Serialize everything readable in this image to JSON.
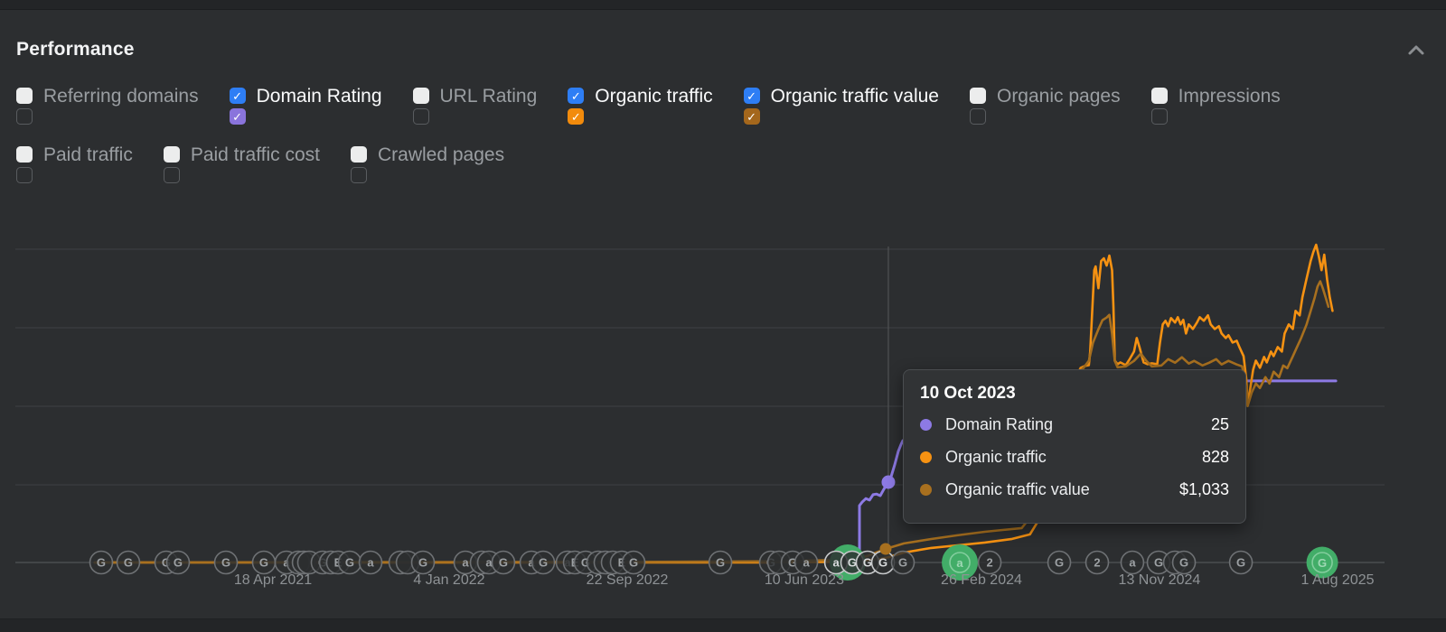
{
  "panel": {
    "title": "Performance",
    "collapse_icon": "chevron-up-icon"
  },
  "metrics_row1": [
    {
      "label": "Referring domains",
      "checked": false,
      "color": null
    },
    {
      "label": "Domain Rating",
      "checked": true,
      "color": "#8a74dc"
    },
    {
      "label": "URL Rating",
      "checked": false,
      "color": null
    },
    {
      "label": "Organic traffic",
      "checked": true,
      "color": "#f28b0c"
    },
    {
      "label": "Organic traffic value",
      "checked": true,
      "color": "#a4671c"
    },
    {
      "label": "Organic pages",
      "checked": false,
      "color": null
    },
    {
      "label": "Impressions",
      "checked": false,
      "color": null
    }
  ],
  "metrics_row2": [
    {
      "label": "Paid traffic",
      "checked": false,
      "color": null
    },
    {
      "label": "Paid traffic cost",
      "checked": false,
      "color": null
    },
    {
      "label": "Crawled pages",
      "checked": false,
      "color": null
    }
  ],
  "checkbox_checked_color": "#2e7ef5",
  "tooltip": {
    "date": "10 Oct 2023",
    "rows": [
      {
        "label": "Domain Rating",
        "value": "25",
        "color": "#8d7ae4"
      },
      {
        "label": "Organic traffic",
        "value": "828",
        "color": "#f69212"
      },
      {
        "label": "Organic traffic value",
        "value": "$1,033",
        "color": "#a8701f"
      }
    ]
  },
  "colors": {
    "panel_bg": "#2c2e30",
    "gridline": "#3e4043",
    "crosshair": "#515употре",
    "axis_text": "#8e9295",
    "domain_rating_line": "#8d7ae4",
    "organic_traffic_line": "#f69212",
    "organic_traffic_value_line": "#a8701f",
    "event_green": "#42ad68",
    "timeline_line": "#4b4e51"
  },
  "chart_data": {
    "type": "line",
    "title": "",
    "xlabel": "",
    "ylabel": "",
    "grid": true,
    "legend_position": "none",
    "x_axis_labels": [
      {
        "label": "18 Apr 2021",
        "t": 0.1881
      },
      {
        "label": "4 Jan 2022",
        "t": 0.3168
      },
      {
        "label": "22 Sep 2022",
        "t": 0.4469
      },
      {
        "label": "10 Jun 2023",
        "t": 0.5762
      },
      {
        "label": "26 Feb 2024",
        "t": 0.7056
      },
      {
        "label": "13 Nov 2024",
        "t": 0.8356
      },
      {
        "label": "1 Aug 2025",
        "t": 0.9657
      }
    ],
    "crosshair_t": 0.6376,
    "hover_date": "10 Oct 2023",
    "series": [
      {
        "name": "Domain Rating",
        "color": "#8d7ae4",
        "width": 3,
        "y_max": 100,
        "points": [
          [
            0.6165,
            0
          ],
          [
            0.6165,
            17.7
          ],
          [
            0.6185,
            18.8
          ],
          [
            0.6212,
            19.9
          ],
          [
            0.6238,
            19.4
          ],
          [
            0.6264,
            21.1
          ],
          [
            0.629,
            21.3
          ],
          [
            0.6317,
            20.8
          ],
          [
            0.6343,
            22.8
          ],
          [
            0.6363,
            24.2
          ],
          [
            0.6376,
            25
          ],
          [
            0.6396,
            26.7
          ],
          [
            0.6422,
            30.3
          ],
          [
            0.6449,
            34.6
          ],
          [
            0.6469,
            36.8
          ],
          [
            0.6482,
            37.9
          ],
          [
            0.682,
            43
          ],
          [
            0.748,
            47.2
          ],
          [
            0.814,
            51.4
          ],
          [
            0.88,
            55.6
          ],
          [
            0.8997,
            56.5
          ],
          [
            0.9644,
            56.5
          ]
        ]
      },
      {
        "name": "Organic traffic",
        "color": "#f69212",
        "width": 2.6,
        "y_max": 49000,
        "points": [
          [
            0.058,
            0
          ],
          [
            0.45,
            0
          ],
          [
            0.55,
            0
          ],
          [
            0.609,
            150
          ],
          [
            0.632,
            550
          ],
          [
            0.638,
            830
          ],
          [
            0.649,
            1520
          ],
          [
            0.669,
            2210
          ],
          [
            0.688,
            2620
          ],
          [
            0.708,
            3040
          ],
          [
            0.728,
            3590
          ],
          [
            0.741,
            4280
          ],
          [
            0.754,
            8690
          ],
          [
            0.764,
            19730
          ],
          [
            0.771,
            26630
          ],
          [
            0.778,
            29670
          ],
          [
            0.781,
            29950
          ],
          [
            0.784,
            30080
          ],
          [
            0.785,
            32150
          ],
          [
            0.787,
            40430
          ],
          [
            0.788,
            44570
          ],
          [
            0.789,
            45130
          ],
          [
            0.791,
            41810
          ],
          [
            0.792,
            43880
          ],
          [
            0.793,
            45950
          ],
          [
            0.795,
            46370
          ],
          [
            0.797,
            45260
          ],
          [
            0.799,
            46780
          ],
          [
            0.801,
            44570
          ],
          [
            0.802,
            39050
          ],
          [
            0.803,
            30770
          ],
          [
            0.805,
            30220
          ],
          [
            0.807,
            30500
          ],
          [
            0.811,
            30080
          ],
          [
            0.814,
            31050
          ],
          [
            0.817,
            32150
          ],
          [
            0.819,
            34220
          ],
          [
            0.821,
            32840
          ],
          [
            0.824,
            30500
          ],
          [
            0.827,
            30220
          ],
          [
            0.83,
            30360
          ],
          [
            0.834,
            30220
          ],
          [
            0.836,
            33530
          ],
          [
            0.838,
            36290
          ],
          [
            0.84,
            36850
          ],
          [
            0.842,
            36020
          ],
          [
            0.844,
            37260
          ],
          [
            0.847,
            36570
          ],
          [
            0.849,
            37400
          ],
          [
            0.851,
            36290
          ],
          [
            0.853,
            36980
          ],
          [
            0.855,
            34910
          ],
          [
            0.857,
            36290
          ],
          [
            0.86,
            35600
          ],
          [
            0.863,
            36570
          ],
          [
            0.865,
            37400
          ],
          [
            0.868,
            36850
          ],
          [
            0.871,
            37670
          ],
          [
            0.873,
            36290
          ],
          [
            0.876,
            35600
          ],
          [
            0.879,
            36020
          ],
          [
            0.881,
            34910
          ],
          [
            0.884,
            34220
          ],
          [
            0.886,
            34640
          ],
          [
            0.889,
            33530
          ],
          [
            0.892,
            33810
          ],
          [
            0.894,
            32840
          ],
          [
            0.897,
            31460
          ],
          [
            0.899,
            28010
          ],
          [
            0.9,
            24150
          ],
          [
            0.902,
            26630
          ],
          [
            0.904,
            29390
          ],
          [
            0.906,
            30770
          ],
          [
            0.909,
            29670
          ],
          [
            0.912,
            31330
          ],
          [
            0.914,
            30500
          ],
          [
            0.917,
            32150
          ],
          [
            0.919,
            31460
          ],
          [
            0.922,
            32840
          ],
          [
            0.925,
            32150
          ],
          [
            0.927,
            34910
          ],
          [
            0.93,
            36290
          ],
          [
            0.933,
            35600
          ],
          [
            0.935,
            38360
          ],
          [
            0.938,
            37670
          ],
          [
            0.94,
            40430
          ],
          [
            0.943,
            43190
          ],
          [
            0.946,
            45950
          ],
          [
            0.948,
            47330
          ],
          [
            0.95,
            48440
          ],
          [
            0.952,
            46640
          ],
          [
            0.954,
            44570
          ],
          [
            0.956,
            46920
          ],
          [
            0.958,
            43190
          ],
          [
            0.96,
            40430
          ],
          [
            0.962,
            38360
          ]
        ]
      },
      {
        "name": "Organic traffic value",
        "color": "#a8701f",
        "width": 2.6,
        "y_max": 24500,
        "points": [
          [
            0.058,
            0
          ],
          [
            0.45,
            40
          ],
          [
            0.55,
            80
          ],
          [
            0.609,
            200
          ],
          [
            0.622,
            480
          ],
          [
            0.632,
            900
          ],
          [
            0.6356,
            1033
          ],
          [
            0.649,
            1450
          ],
          [
            0.669,
            1790
          ],
          [
            0.688,
            2070
          ],
          [
            0.708,
            2340
          ],
          [
            0.721,
            2480
          ],
          [
            0.735,
            2620
          ],
          [
            0.748,
            4340
          ],
          [
            0.758,
            7790
          ],
          [
            0.768,
            11920
          ],
          [
            0.778,
            14540
          ],
          [
            0.784,
            15370
          ],
          [
            0.787,
            16740
          ],
          [
            0.791,
            17780
          ],
          [
            0.794,
            18470
          ],
          [
            0.797,
            18670
          ],
          [
            0.799,
            18880
          ],
          [
            0.801,
            17430
          ],
          [
            0.803,
            15370
          ],
          [
            0.805,
            14880
          ],
          [
            0.811,
            14950
          ],
          [
            0.817,
            15370
          ],
          [
            0.822,
            15920
          ],
          [
            0.826,
            15370
          ],
          [
            0.83,
            14950
          ],
          [
            0.837,
            15020
          ],
          [
            0.842,
            15500
          ],
          [
            0.847,
            15230
          ],
          [
            0.852,
            15640
          ],
          [
            0.857,
            15160
          ],
          [
            0.861,
            15370
          ],
          [
            0.867,
            15020
          ],
          [
            0.872,
            15230
          ],
          [
            0.877,
            15500
          ],
          [
            0.881,
            15090
          ],
          [
            0.886,
            15370
          ],
          [
            0.892,
            15090
          ],
          [
            0.896,
            14950
          ],
          [
            0.899,
            13300
          ],
          [
            0.9,
            11920
          ],
          [
            0.903,
            12950
          ],
          [
            0.906,
            13640
          ],
          [
            0.909,
            13300
          ],
          [
            0.913,
            14130
          ],
          [
            0.916,
            13640
          ],
          [
            0.919,
            14540
          ],
          [
            0.923,
            14130
          ],
          [
            0.926,
            15020
          ],
          [
            0.929,
            14810
          ],
          [
            0.933,
            15710
          ],
          [
            0.936,
            16400
          ],
          [
            0.939,
            17090
          ],
          [
            0.943,
            18120
          ],
          [
            0.946,
            19160
          ],
          [
            0.949,
            20190
          ],
          [
            0.951,
            21020
          ],
          [
            0.953,
            21430
          ],
          [
            0.955,
            20880
          ],
          [
            0.957,
            20190
          ],
          [
            0.959,
            19500
          ]
        ]
      }
    ],
    "active_dots": [
      {
        "series": 0,
        "t": 0.6376,
        "v": 25,
        "r": 7.5
      },
      {
        "series": 2,
        "t": 0.6356,
        "v": 1033,
        "r": 6.5
      }
    ],
    "events": [
      {
        "t": 0.6079,
        "l": "",
        "s": "g",
        "r": 20
      },
      {
        "t": 0.6898,
        "l": "a",
        "s": "g",
        "r": 20
      },
      {
        "t": 0.9545,
        "l": "G",
        "s": "g",
        "r": 17.5
      },
      {
        "t": 0.0627,
        "l": "G",
        "s": "n"
      },
      {
        "t": 0.0825,
        "l": "G",
        "s": "n"
      },
      {
        "t": 0.1102,
        "l": "G",
        "s": "n"
      },
      {
        "t": 0.1188,
        "l": "G",
        "s": "n"
      },
      {
        "t": 0.1538,
        "l": "G",
        "s": "n"
      },
      {
        "t": 0.1815,
        "l": "G",
        "s": "n"
      },
      {
        "t": 0.198,
        "l": "a",
        "s": "n"
      },
      {
        "t": 0.2066,
        "l": "",
        "s": "n"
      },
      {
        "t": 0.2106,
        "l": "",
        "s": "n"
      },
      {
        "t": 0.2145,
        "l": "",
        "s": "n"
      },
      {
        "t": 0.2244,
        "l": "G",
        "s": "n"
      },
      {
        "t": 0.2304,
        "l": "",
        "s": "n"
      },
      {
        "t": 0.2356,
        "l": "E",
        "s": "n"
      },
      {
        "t": 0.2442,
        "l": "G",
        "s": "n"
      },
      {
        "t": 0.2594,
        "l": "a",
        "s": "n"
      },
      {
        "t": 0.2812,
        "l": "",
        "s": "n"
      },
      {
        "t": 0.2865,
        "l": "",
        "s": "n"
      },
      {
        "t": 0.2977,
        "l": "G",
        "s": "n"
      },
      {
        "t": 0.3287,
        "l": "a",
        "s": "n"
      },
      {
        "t": 0.3406,
        "l": "",
        "s": "n"
      },
      {
        "t": 0.3459,
        "l": "a",
        "s": "n"
      },
      {
        "t": 0.3564,
        "l": "G",
        "s": "n"
      },
      {
        "t": 0.3769,
        "l": "a",
        "s": "n"
      },
      {
        "t": 0.3855,
        "l": "G",
        "s": "n"
      },
      {
        "t": 0.4033,
        "l": "a",
        "s": "n"
      },
      {
        "t": 0.4086,
        "l": "E",
        "s": "n"
      },
      {
        "t": 0.4165,
        "l": "G",
        "s": "n"
      },
      {
        "t": 0.4257,
        "l": "",
        "s": "n"
      },
      {
        "t": 0.431,
        "l": "",
        "s": "n"
      },
      {
        "t": 0.4363,
        "l": "",
        "s": "n"
      },
      {
        "t": 0.4429,
        "l": "E",
        "s": "n"
      },
      {
        "t": 0.4515,
        "l": "G",
        "s": "n"
      },
      {
        "t": 0.5149,
        "l": "G",
        "s": "n"
      },
      {
        "t": 0.5518,
        "l": "G",
        "s": "n"
      },
      {
        "t": 0.5578,
        "l": "",
        "s": "n"
      },
      {
        "t": 0.5677,
        "l": "G",
        "s": "n"
      },
      {
        "t": 0.5776,
        "l": "a",
        "s": "n"
      },
      {
        "t": 0.5994,
        "l": "a",
        "s": "b"
      },
      {
        "t": 0.6112,
        "l": "G",
        "s": "b"
      },
      {
        "t": 0.6224,
        "l": "G",
        "s": "b"
      },
      {
        "t": 0.6337,
        "l": "G",
        "s": "b"
      },
      {
        "t": 0.6482,
        "l": "G",
        "s": "n"
      },
      {
        "t": 0.7116,
        "l": "2",
        "s": "n"
      },
      {
        "t": 0.7624,
        "l": "G",
        "s": "n"
      },
      {
        "t": 0.7901,
        "l": "2",
        "s": "n"
      },
      {
        "t": 0.8158,
        "l": "a",
        "s": "n"
      },
      {
        "t": 0.835,
        "l": "G",
        "s": "n"
      },
      {
        "t": 0.8469,
        "l": "",
        "s": "n"
      },
      {
        "t": 0.8535,
        "l": "G",
        "s": "n"
      },
      {
        "t": 0.8951,
        "l": "G",
        "s": "n"
      }
    ]
  }
}
